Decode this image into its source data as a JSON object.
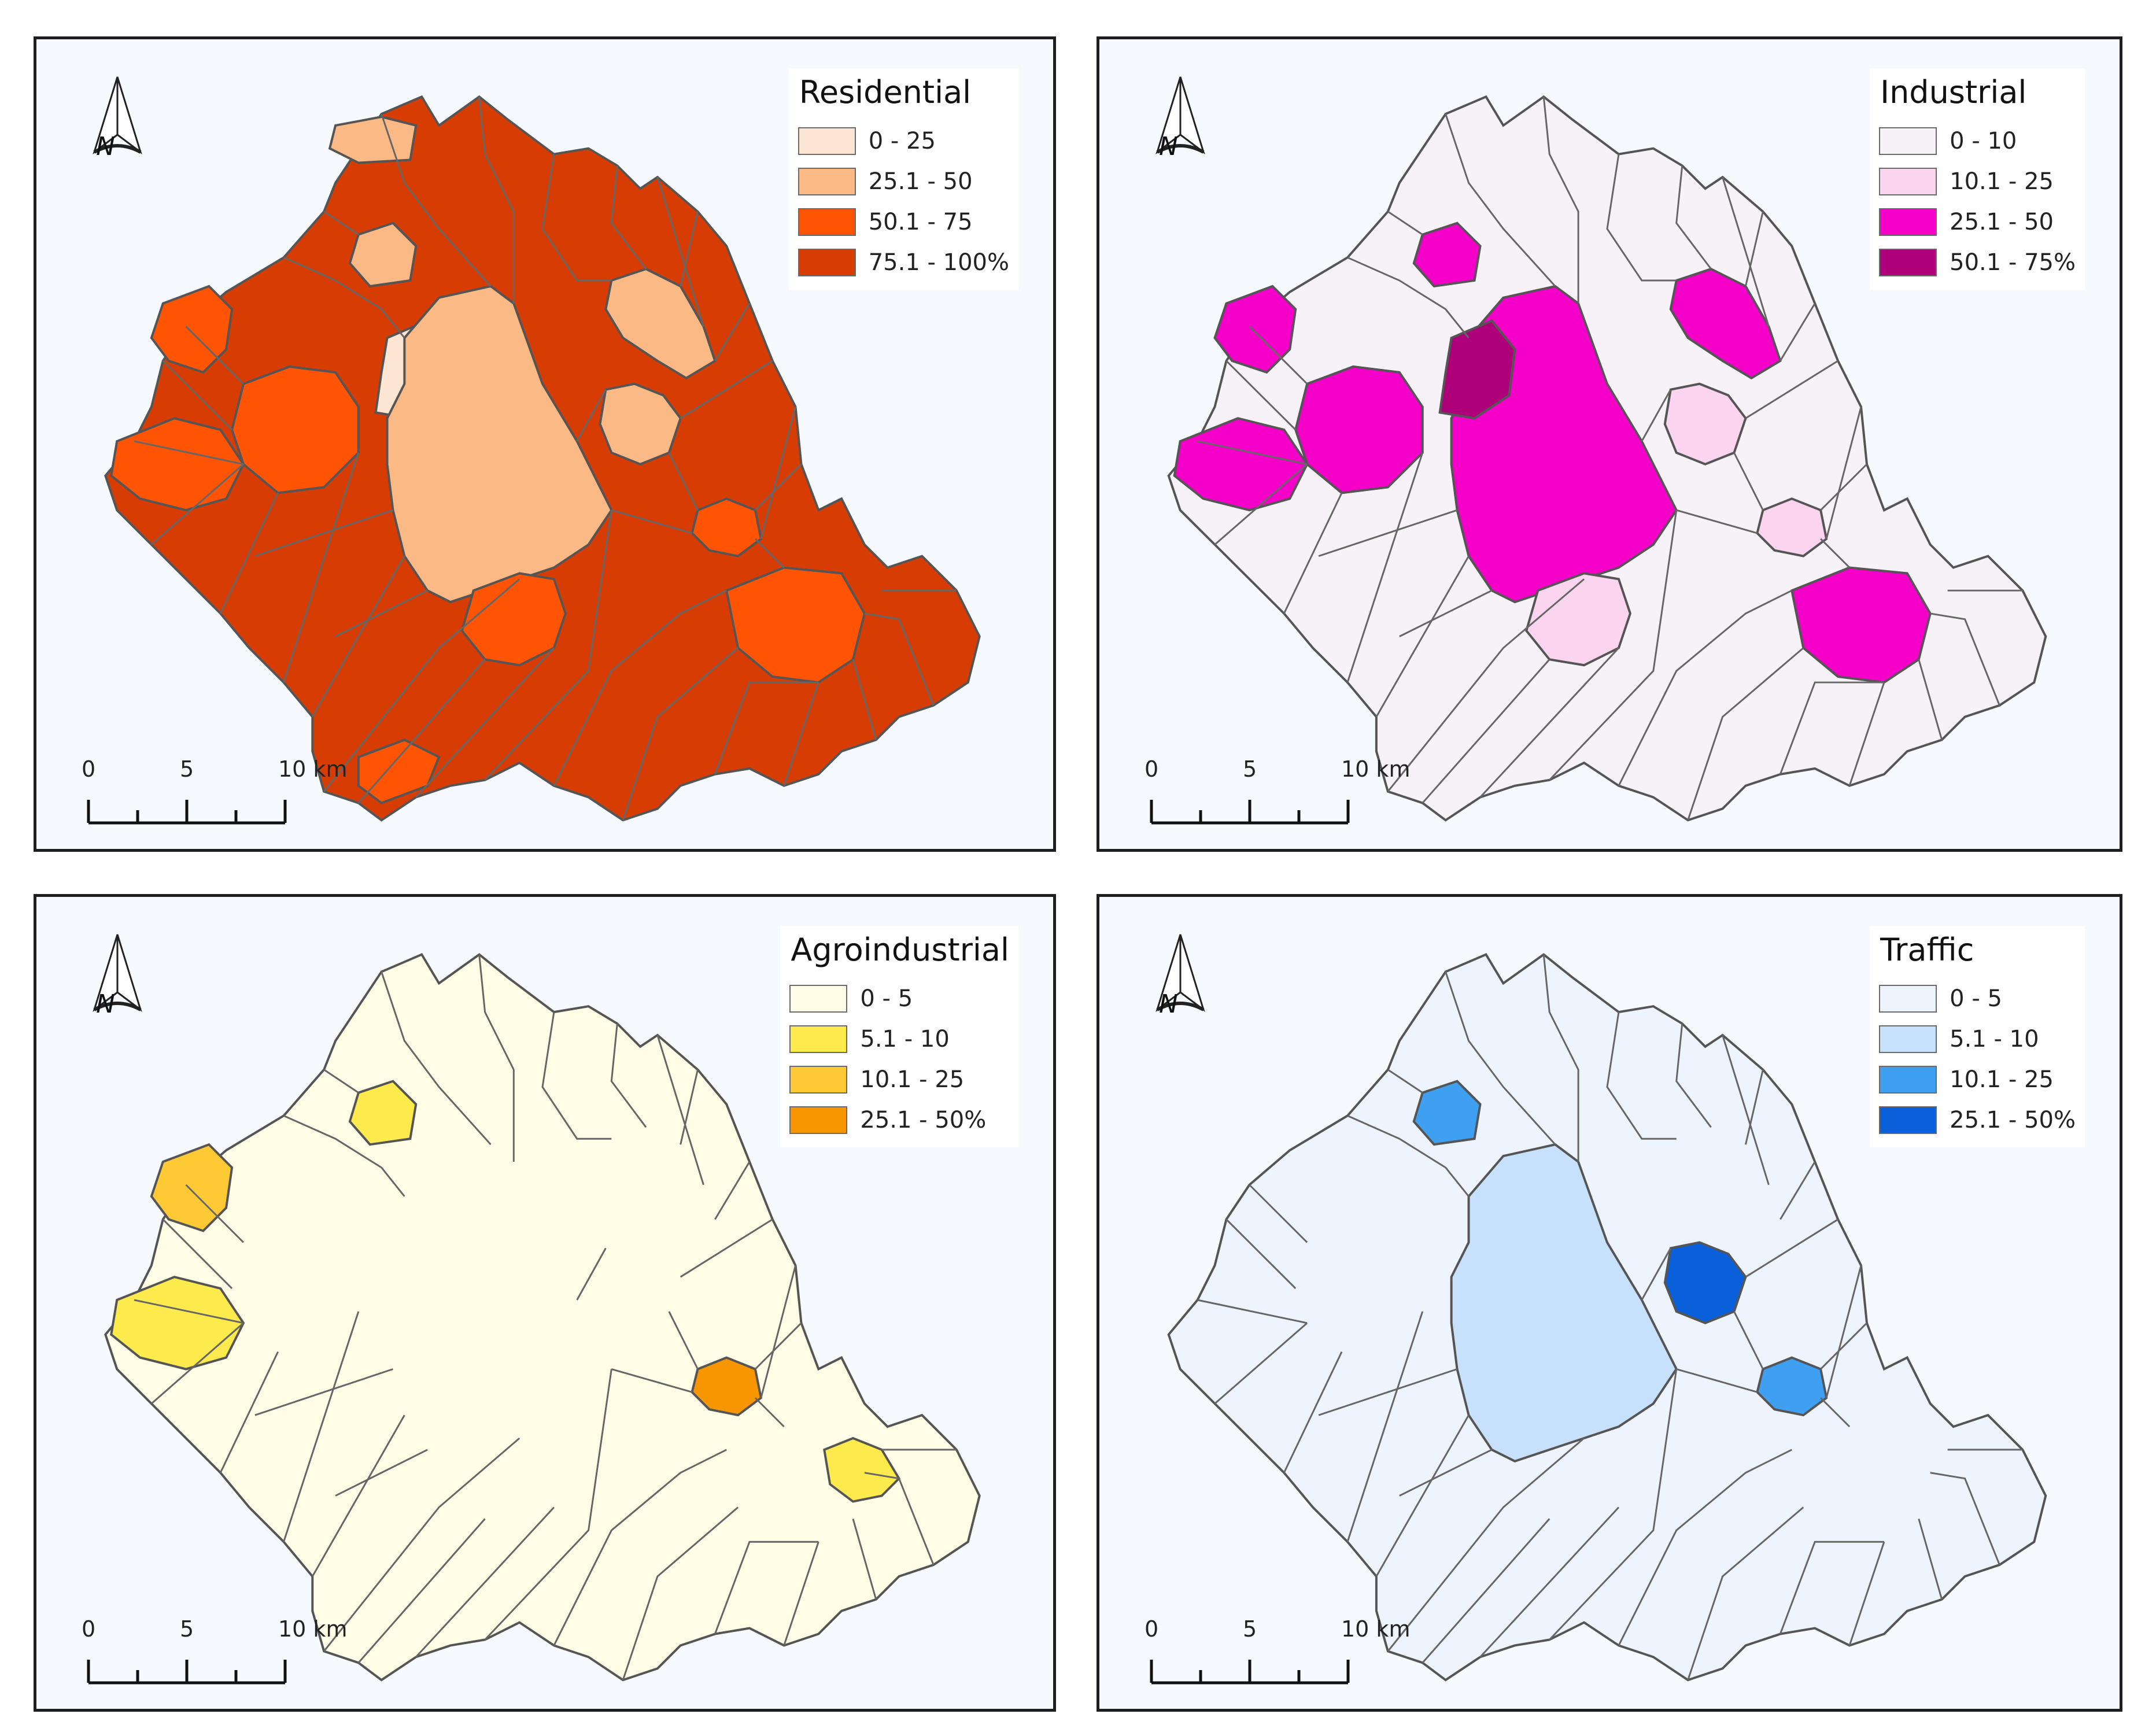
{
  "panels": [
    {
      "title": "Residential",
      "classes": [
        {
          "label": "0 - 25",
          "color": "#fde5d3"
        },
        {
          "label": "25.1 - 50",
          "color": "#fbba85"
        },
        {
          "label": "50.1 - 75",
          "color": "#fe5403"
        },
        {
          "label": "75.1 - 100%",
          "color": "#d73d03"
        }
      ],
      "default_class": 3,
      "highlights": [
        {
          "region": "nw-strip",
          "class": 1
        },
        {
          "region": "north-small",
          "class": 1
        },
        {
          "region": "center-west-small",
          "class": 0
        },
        {
          "region": "center-big",
          "class": 1
        },
        {
          "region": "ne-upper",
          "class": 1
        },
        {
          "region": "ne-mid",
          "class": 1
        },
        {
          "region": "west-1",
          "class": 2
        },
        {
          "region": "west-2",
          "class": 2
        },
        {
          "region": "west-3",
          "class": 2
        },
        {
          "region": "south-center",
          "class": 2
        },
        {
          "region": "southeast",
          "class": 2
        },
        {
          "region": "south-west-tip",
          "class": 2
        },
        {
          "region": "east-small",
          "class": 2
        }
      ],
      "north": "N",
      "scale": {
        "ticks": [
          "0",
          "5",
          "10 km"
        ]
      }
    },
    {
      "title": "Industrial",
      "classes": [
        {
          "label": "0 - 10",
          "color": "#f7f2f7"
        },
        {
          "label": "10.1 - 25",
          "color": "#fbd5f0"
        },
        {
          "label": "25.1 - 50",
          "color": "#f400c9"
        },
        {
          "label": "50.1 - 75%",
          "color": "#ae0078"
        }
      ],
      "default_class": 0,
      "highlights": [
        {
          "region": "west-1",
          "class": 2
        },
        {
          "region": "west-2",
          "class": 2
        },
        {
          "region": "west-3",
          "class": 2
        },
        {
          "region": "center-big",
          "class": 2
        },
        {
          "region": "north-small",
          "class": 2
        },
        {
          "region": "center-west-small",
          "class": 3
        },
        {
          "region": "ne-upper",
          "class": 2
        },
        {
          "region": "ne-mid",
          "class": 1
        },
        {
          "region": "east-small",
          "class": 1
        },
        {
          "region": "southeast",
          "class": 2
        },
        {
          "region": "south-center",
          "class": 1
        }
      ],
      "north": "N",
      "scale": {
        "ticks": [
          "0",
          "5",
          "10 km"
        ]
      }
    },
    {
      "title": "Agroindustrial",
      "classes": [
        {
          "label": "0 - 5",
          "color": "#fffde6"
        },
        {
          "label": "5.1 - 10",
          "color": "#fdea4c"
        },
        {
          "label": "10.1 - 25",
          "color": "#fdca35"
        },
        {
          "label": "25.1 - 50%",
          "color": "#f79600"
        }
      ],
      "default_class": 0,
      "highlights": [
        {
          "region": "west-1",
          "class": 2
        },
        {
          "region": "west-2",
          "class": 1
        },
        {
          "region": "north-small",
          "class": 1
        },
        {
          "region": "east-small",
          "class": 3
        },
        {
          "region": "far-east",
          "class": 1
        }
      ],
      "north": "N",
      "scale": {
        "ticks": [
          "0",
          "5",
          "10 km"
        ]
      }
    },
    {
      "title": "Traffic",
      "classes": [
        {
          "label": "0 - 5",
          "color": "#edf4fd"
        },
        {
          "label": "5.1 - 10",
          "color": "#c7e0fb"
        },
        {
          "label": "10.1 - 25",
          "color": "#3f9ff0"
        },
        {
          "label": "25.1 - 50%",
          "color": "#0a5fdb"
        }
      ],
      "default_class": 0,
      "highlights": [
        {
          "region": "center-big",
          "class": 1
        },
        {
          "region": "north-small",
          "class": 2
        },
        {
          "region": "ne-mid",
          "class": 3
        },
        {
          "region": "east-small",
          "class": 2
        }
      ],
      "north": "N",
      "scale": {
        "ticks": [
          "0",
          "5",
          "10 km"
        ]
      }
    }
  ]
}
